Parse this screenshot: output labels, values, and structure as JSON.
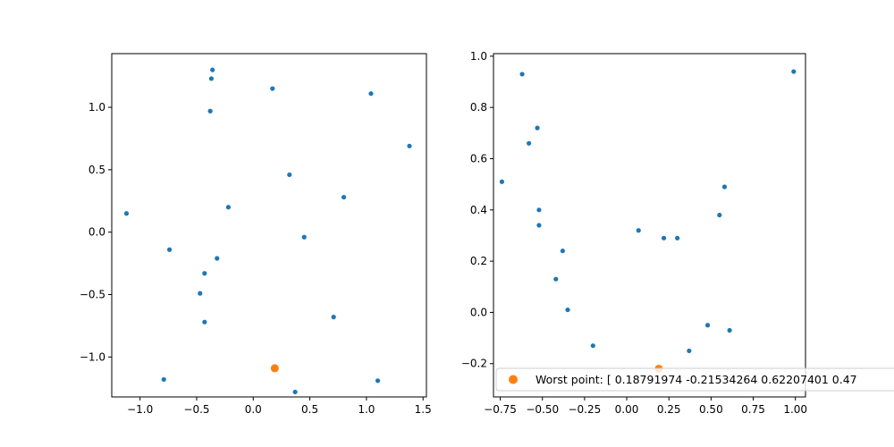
{
  "colors": {
    "scatter": "#1f77b4",
    "highlight": "#ff7f0e",
    "axes": "#000000",
    "legend_border": "#cccccc"
  },
  "chart_data": [
    {
      "type": "scatter",
      "title": "",
      "xlabel": "",
      "ylabel": "",
      "grid": false,
      "xlim": [
        -1.25,
        1.53
      ],
      "ylim": [
        -1.32,
        1.43
      ],
      "x_ticks": [
        -1.0,
        -0.5,
        0.0,
        0.5,
        1.0,
        1.5
      ],
      "x_tick_labels": [
        "−1.0",
        "−0.5",
        "0.0",
        "0.5",
        "1.0",
        "1.5"
      ],
      "y_ticks": [
        -1.0,
        -0.5,
        0.0,
        0.5,
        1.0
      ],
      "y_tick_labels": [
        "−1.0",
        "−0.5",
        "0.0",
        "0.5",
        "1.0"
      ],
      "series": [
        {
          "color": "#1f77b4",
          "marker_size": "small",
          "x": [
            -0.36,
            -0.37,
            -0.38,
            0.17,
            1.04,
            1.38,
            0.32,
            0.8,
            -0.22,
            -1.12,
            0.45,
            -0.74,
            -0.32,
            -0.43,
            -0.47,
            -0.43,
            0.71,
            -0.79,
            1.1,
            0.37
          ],
          "y": [
            1.3,
            1.23,
            0.97,
            1.15,
            1.11,
            0.69,
            0.46,
            0.28,
            0.2,
            0.15,
            -0.04,
            -0.14,
            -0.21,
            -0.33,
            -0.49,
            -0.72,
            -0.68,
            -1.18,
            -1.19,
            -1.28
          ]
        },
        {
          "color": "#ff7f0e",
          "marker_size": "large",
          "x": [
            0.19
          ],
          "y": [
            -1.09
          ]
        }
      ]
    },
    {
      "type": "scatter",
      "title": "",
      "xlabel": "",
      "ylabel": "",
      "grid": false,
      "xlim": [
        -0.79,
        1.06
      ],
      "ylim": [
        -0.33,
        1.01
      ],
      "x_ticks": [
        -0.75,
        -0.5,
        -0.25,
        0.0,
        0.25,
        0.5,
        0.75,
        1.0
      ],
      "x_tick_labels": [
        "−0.75",
        "−0.50",
        "−0.25",
        "0.00",
        "0.25",
        "0.50",
        "0.75",
        "1.00"
      ],
      "y_ticks": [
        -0.2,
        0.0,
        0.2,
        0.4,
        0.6,
        0.8,
        1.0
      ],
      "y_tick_labels": [
        "−0.2",
        "0.0",
        "0.2",
        "0.4",
        "0.6",
        "0.8",
        "1.0"
      ],
      "legend": {
        "placement": "lower-left, extending past right edge",
        "entries": [
          "Worst point: [ 0.18791974 -0.21534264  0.62207401  0.47"
        ]
      },
      "series": [
        {
          "color": "#1f77b4",
          "marker_size": "small",
          "x": [
            -0.62,
            0.99,
            -0.53,
            -0.58,
            -0.74,
            0.58,
            -0.52,
            0.55,
            -0.52,
            0.07,
            0.22,
            0.3,
            -0.38,
            -0.42,
            -0.35,
            0.48,
            0.61,
            -0.2,
            0.37
          ],
          "y": [
            0.93,
            0.94,
            0.72,
            0.66,
            0.51,
            0.49,
            0.4,
            0.38,
            0.34,
            0.32,
            0.29,
            0.29,
            0.24,
            0.13,
            0.01,
            -0.05,
            -0.07,
            -0.13,
            -0.15
          ]
        },
        {
          "name": "Worst point: [ 0.18791974 -0.21534264  0.62207401  0.47",
          "color": "#ff7f0e",
          "marker_size": "large",
          "x": [
            0.19
          ],
          "y": [
            -0.22
          ]
        }
      ]
    }
  ]
}
